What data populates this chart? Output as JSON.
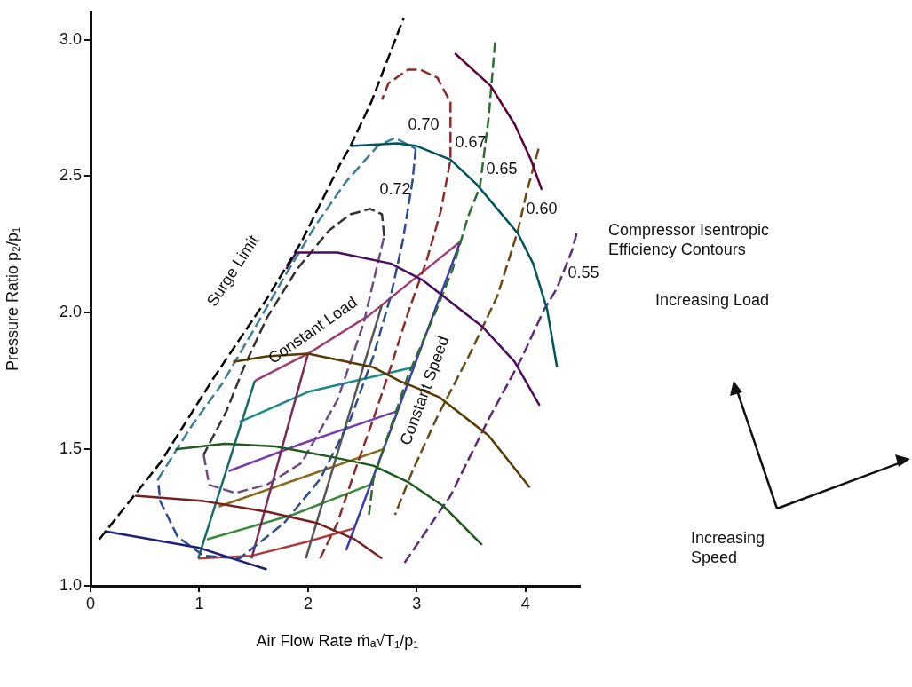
{
  "chart_data": {
    "type": "line",
    "xlabel": "Air Flow Rate ṁₐ√T₁/p₁",
    "ylabel": "Pressure Ratio p₂/p₁",
    "marker": "none",
    "xlim": [
      0,
      4.5
    ],
    "ylim": [
      1,
      3.1
    ],
    "xticks": [
      0,
      1,
      2,
      3,
      4
    ],
    "yticks": [
      {
        "value": 1,
        "label": "1.0"
      },
      {
        "value": 1.5,
        "label": "1.5"
      },
      {
        "value": 2,
        "label": "2.0"
      },
      {
        "value": 2.5,
        "label": "2.5"
      },
      {
        "value": 3,
        "label": "3.0"
      }
    ],
    "series": [
      {
        "color": "#000000",
        "line_style": "dashed",
        "x": [
          0.08,
          0.64,
          1.13,
          1.62,
          1.94,
          2.29,
          2.39,
          2.58,
          2.88
        ],
        "values": [
          1.17,
          1.45,
          1.76,
          2.05,
          2.26,
          2.54,
          2.61,
          2.77,
          3.08
        ]
      },
      {
        "color": "#1f1f7a",
        "line_style": "solid",
        "x": [
          0.13,
          0.56,
          0.99,
          1.62
        ],
        "values": [
          1.2,
          1.17,
          1.14,
          1.06
        ]
      },
      {
        "color": "#7a1f1f",
        "line_style": "solid",
        "x": [
          0.41,
          1.04,
          1.64,
          2.08,
          2.43,
          2.68
        ],
        "values": [
          1.33,
          1.31,
          1.27,
          1.23,
          1.17,
          1.1
        ]
      },
      {
        "color": "#1f5a1f",
        "line_style": "solid",
        "x": [
          0.78,
          1.23,
          1.7,
          2.24,
          2.6,
          2.92,
          3.25,
          3.6
        ],
        "values": [
          1.5,
          1.52,
          1.51,
          1.47,
          1.44,
          1.38,
          1.29,
          1.15
        ]
      },
      {
        "color": "#5a3a00",
        "line_style": "solid",
        "x": [
          1.31,
          1.62,
          2.0,
          2.6,
          2.84,
          3.21,
          3.66,
          4.04
        ],
        "values": [
          1.82,
          1.84,
          1.85,
          1.8,
          1.75,
          1.69,
          1.55,
          1.36
        ]
      },
      {
        "color": "#4b0d5e",
        "line_style": "solid",
        "x": [
          1.8,
          1.89,
          2.27,
          2.76,
          3.05,
          3.6,
          3.9,
          4.13
        ],
        "values": [
          2.16,
          2.22,
          2.22,
          2.18,
          2.12,
          1.95,
          1.82,
          1.66
        ]
      },
      {
        "color": "#00545e",
        "line_style": "solid",
        "x": [
          2.39,
          2.82,
          3.0,
          3.31,
          3.55,
          3.74,
          3.93,
          4.07,
          4.2,
          4.29
        ],
        "values": [
          2.61,
          2.62,
          2.61,
          2.56,
          2.47,
          2.38,
          2.29,
          2.18,
          2.01,
          1.8
        ]
      },
      {
        "color": "#5e0038",
        "line_style": "solid",
        "x": [
          3.35,
          3.68,
          3.9,
          4.05,
          4.15
        ],
        "values": [
          2.95,
          2.83,
          2.69,
          2.56,
          2.45
        ]
      },
      {
        "color": "#333333",
        "line_style": "dashed",
        "x": [
          2.7,
          2.68,
          2.57,
          2.39,
          2.19,
          1.9,
          1.62,
          1.41,
          1.25,
          1.04
        ],
        "values": [
          2.28,
          2.36,
          2.38,
          2.36,
          2.3,
          2.16,
          1.98,
          1.8,
          1.64,
          1.48
        ]
      },
      {
        "color": "#2a4d8f",
        "line_style": "dashed",
        "x": [
          2.99,
          2.96,
          2.87,
          2.76,
          2.6,
          2.39,
          2.11,
          1.78,
          1.37,
          1.04,
          0.8,
          0.64,
          0.62
        ],
        "values": [
          2.6,
          2.48,
          2.26,
          2.06,
          1.84,
          1.61,
          1.39,
          1.23,
          1.1,
          1.11,
          1.18,
          1.31,
          1.39
        ]
      },
      {
        "color": "#6e4a8a",
        "line_style": "dashed",
        "x": [
          1.04,
          1.09,
          1.33,
          1.62,
          1.94,
          2.27,
          2.51,
          2.7
        ],
        "values": [
          1.48,
          1.37,
          1.34,
          1.37,
          1.45,
          1.68,
          1.96,
          2.28
        ]
      },
      {
        "color": "#3c7f9a",
        "line_style": "dashed",
        "x": [
          0.62,
          0.92,
          1.21,
          1.49,
          1.78,
          2.07,
          2.35,
          2.64,
          2.8,
          2.99
        ],
        "values": [
          1.39,
          1.58,
          1.74,
          1.93,
          2.13,
          2.32,
          2.48,
          2.61,
          2.64,
          2.6
        ]
      },
      {
        "color": "#8f2a2a",
        "line_style": "dashed",
        "x": [
          2.11,
          2.27,
          2.43,
          2.6,
          2.76,
          2.92,
          3.09,
          3.22,
          3.31,
          3.31,
          3.31,
          3.19,
          3.03,
          2.92,
          2.74,
          2.68
        ],
        "values": [
          1.1,
          1.23,
          1.42,
          1.61,
          1.8,
          2.0,
          2.19,
          2.37,
          2.56,
          2.68,
          2.77,
          2.86,
          2.89,
          2.89,
          2.84,
          2.78
        ]
      },
      {
        "color": "#2f6b2f",
        "line_style": "dashed",
        "x": [
          3.72,
          3.66,
          3.58,
          3.47,
          3.33,
          3.17,
          2.92,
          2.76,
          2.6,
          2.56
        ],
        "values": [
          2.99,
          2.71,
          2.46,
          2.35,
          2.16,
          2.0,
          1.77,
          1.58,
          1.39,
          1.26
        ]
      },
      {
        "color": "#6b4a14",
        "line_style": "dashed",
        "x": [
          4.12,
          4.01,
          3.93,
          3.74,
          3.49,
          3.19,
          2.96,
          2.8
        ],
        "values": [
          2.6,
          2.44,
          2.3,
          2.06,
          1.85,
          1.62,
          1.42,
          1.26
        ]
      },
      {
        "color": "#5c2a7a",
        "line_style": "dashed",
        "x": [
          4.47,
          4.43,
          4.29,
          4.17,
          3.96,
          3.66,
          3.31,
          2.88
        ],
        "values": [
          2.29,
          2.23,
          2.09,
          2.01,
          1.83,
          1.61,
          1.33,
          1.08
        ]
      },
      {
        "color": "#146b6b",
        "line_style": "solid",
        "x": [
          0.99,
          1.51
        ],
        "values": [
          1.1,
          1.75
        ]
      },
      {
        "color": "#7a2a55",
        "line_style": "solid",
        "x": [
          1.48,
          2.0
        ],
        "values": [
          1.1,
          1.85
        ]
      },
      {
        "color": "#555555",
        "line_style": "solid",
        "x": [
          1.98,
          2.68
        ],
        "values": [
          1.1,
          2.03
        ]
      },
      {
        "color": "#3a3ab0",
        "line_style": "solid",
        "x": [
          2.35,
          3.4
        ],
        "values": [
          1.13,
          2.26
        ]
      },
      {
        "color": "#b03a3a",
        "line_style": "solid",
        "x": [
          0.99,
          1.48,
          1.98,
          2.42
        ],
        "values": [
          1.1,
          1.11,
          1.16,
          1.21
        ]
      },
      {
        "color": "#3a8a3a",
        "line_style": "solid",
        "x": [
          1.07,
          1.86,
          2.57
        ],
        "values": [
          1.17,
          1.26,
          1.37
        ]
      },
      {
        "color": "#8a6a1a",
        "line_style": "solid",
        "x": [
          1.18,
          1.9,
          2.69
        ],
        "values": [
          1.29,
          1.39,
          1.5
        ]
      },
      {
        "color": "#7a3ab0",
        "line_style": "solid",
        "x": [
          1.27,
          1.94,
          2.82
        ],
        "values": [
          1.42,
          1.52,
          1.64
        ]
      },
      {
        "color": "#1a8a8a",
        "line_style": "solid",
        "x": [
          1.37,
          2.0,
          2.97
        ],
        "values": [
          1.6,
          1.71,
          1.8
        ]
      },
      {
        "color": "#a03a70",
        "line_style": "solid",
        "x": [
          1.51,
          2.0,
          2.56,
          3.4
        ],
        "values": [
          1.75,
          1.85,
          1.99,
          2.26
        ]
      }
    ],
    "annotations": [
      "Surge Limit",
      "Constant Load",
      "Constant Speed",
      "0.72",
      "0.70",
      "0.67",
      "0.65",
      "0.60",
      "0.55",
      "Compressor Isentropic Efficiency Contours",
      "Increasing Load",
      "Increasing Speed"
    ]
  }
}
